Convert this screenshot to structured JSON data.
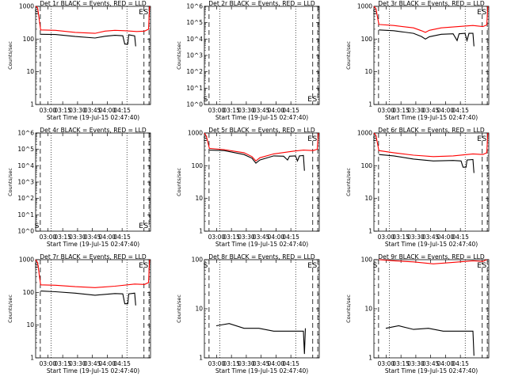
{
  "start_time_label": "Start Time (19-Jul-15 02:47:40)",
  "ylabel": "Counts/sec",
  "time_ticks": [
    "03:00",
    "03:15",
    "03:30",
    "03:45",
    "04:00",
    "04:15"
  ],
  "colors": {
    "events": "#000000",
    "lld": "#ff0000"
  },
  "chart_data": [
    {
      "type": "line",
      "title": "Det 1r BLACK = Events, RED = LLD",
      "xlabel": "Start Time (19-Jul-15 02:47:40)",
      "ylabel": "Counts/sec",
      "scale": "log",
      "ylim": [
        1,
        1000
      ],
      "yticks": [
        "1",
        "10",
        "100",
        "1000"
      ],
      "markers": [
        "S",
        "E",
        "S"
      ],
      "series": [
        {
          "name": "LLD",
          "color": "red",
          "points": [
            [
              0,
              1000
            ],
            [
              2,
              900
            ],
            [
              5,
              190
            ],
            [
              20,
              185
            ],
            [
              40,
              160
            ],
            [
              60,
              150
            ],
            [
              70,
              175
            ],
            [
              80,
              185
            ],
            [
              90,
              180
            ],
            [
              102,
              170
            ],
            [
              110,
              175
            ],
            [
              114,
              200
            ],
            [
              115,
              1000
            ]
          ]
        },
        {
          "name": "Events",
          "color": "black",
          "points": [
            [
              5,
              140
            ],
            [
              20,
              138
            ],
            [
              40,
              120
            ],
            [
              60,
              108
            ],
            [
              70,
              122
            ],
            [
              80,
              130
            ],
            [
              88,
              126
            ],
            [
              90,
              70
            ],
            [
              93,
              70
            ],
            [
              94,
              135
            ],
            [
              100,
              125
            ],
            [
              101,
              60
            ]
          ]
        }
      ]
    },
    {
      "type": "line",
      "title": "Det 2r BLACK = Events, RED = LLD",
      "xlabel": "Start Time (19-Jul-15 02:47:40)",
      "ylabel": "Counts/sec",
      "scale": "log",
      "ylim": [
        1,
        1000000
      ],
      "yticks": [
        "10^0",
        "10^1",
        "10^2",
        "10^3",
        "10^4",
        "10^5",
        "10^6"
      ],
      "markers": [
        "S",
        "E",
        "S"
      ],
      "series": []
    },
    {
      "type": "line",
      "title": "Det 3r BLACK = Events, RED = LLD",
      "xlabel": "Start Time (19-Jul-15 02:47:40)",
      "ylabel": "Counts/sec",
      "scale": "log",
      "ylim": [
        1,
        1000
      ],
      "yticks": [
        "1",
        "10",
        "100",
        "1000"
      ],
      "markers": [
        "S",
        "E",
        "S"
      ],
      "series": [
        {
          "name": "LLD",
          "color": "red",
          "points": [
            [
              0,
              1000
            ],
            [
              2,
              850
            ],
            [
              5,
              280
            ],
            [
              20,
              260
            ],
            [
              40,
              220
            ],
            [
              48,
              180
            ],
            [
              52,
              160
            ],
            [
              56,
              185
            ],
            [
              68,
              220
            ],
            [
              85,
              240
            ],
            [
              100,
              260
            ],
            [
              110,
              240
            ],
            [
              114,
              270
            ],
            [
              115,
              1000
            ]
          ]
        },
        {
          "name": "Events",
          "color": "black",
          "points": [
            [
              5,
              190
            ],
            [
              20,
              180
            ],
            [
              40,
              150
            ],
            [
              48,
              120
            ],
            [
              52,
              100
            ],
            [
              56,
              118
            ],
            [
              68,
              140
            ],
            [
              80,
              145
            ],
            [
              84,
              90
            ],
            [
              86,
              145
            ],
            [
              92,
              150
            ],
            [
              94,
              90
            ],
            [
              96,
              150
            ],
            [
              100,
              150
            ],
            [
              101,
              60
            ]
          ]
        }
      ]
    },
    {
      "type": "line",
      "title": "Det 4r BLACK = Events, RED = LLD",
      "xlabel": "Start Time (19-Jul-15 02:47:40)",
      "ylabel": "Counts/sec",
      "scale": "log",
      "ylim": [
        1,
        1000000
      ],
      "yticks": [
        "10^0",
        "10^1",
        "10^2",
        "10^3",
        "10^4",
        "10^5",
        "10^6"
      ],
      "markers": [
        "S",
        "E",
        "S"
      ],
      "series": []
    },
    {
      "type": "line",
      "title": "Det 5r BLACK = Events, RED = LLD",
      "xlabel": "Start Time (19-Jul-15 02:47:40)",
      "ylabel": "Counts/sec",
      "scale": "log",
      "ylim": [
        1,
        1000
      ],
      "yticks": [
        "1",
        "10",
        "100",
        "1000"
      ],
      "markers": [
        "S",
        "E",
        "S"
      ],
      "series": [
        {
          "name": "LLD",
          "color": "red",
          "points": [
            [
              0,
              1000
            ],
            [
              2,
              800
            ],
            [
              5,
              340
            ],
            [
              20,
              310
            ],
            [
              40,
              250
            ],
            [
              48,
              190
            ],
            [
              52,
              140
            ],
            [
              56,
              175
            ],
            [
              70,
              230
            ],
            [
              90,
              280
            ],
            [
              100,
              300
            ],
            [
              110,
              290
            ],
            [
              114,
              320
            ],
            [
              115,
              1000
            ]
          ]
        },
        {
          "name": "Events",
          "color": "black",
          "points": [
            [
              5,
              300
            ],
            [
              20,
              290
            ],
            [
              40,
              220
            ],
            [
              48,
              170
            ],
            [
              52,
              120
            ],
            [
              56,
              150
            ],
            [
              70,
              200
            ],
            [
              80,
              195
            ],
            [
              84,
              150
            ],
            [
              86,
              195
            ],
            [
              92,
              200
            ],
            [
              94,
              140
            ],
            [
              96,
              200
            ],
            [
              100,
              205
            ],
            [
              101,
              70
            ]
          ]
        }
      ]
    },
    {
      "type": "line",
      "title": "Det 6r BLACK = Events, RED = LLD",
      "xlabel": "Start Time (19-Jul-15 02:47:40)",
      "ylabel": "Counts/sec",
      "scale": "log",
      "ylim": [
        1,
        1000
      ],
      "yticks": [
        "1",
        "10",
        "100",
        "1000"
      ],
      "markers": [
        "S",
        "E",
        "S"
      ],
      "series": [
        {
          "name": "LLD",
          "color": "red",
          "points": [
            [
              0,
              1000
            ],
            [
              2,
              850
            ],
            [
              5,
              290
            ],
            [
              20,
              250
            ],
            [
              40,
              210
            ],
            [
              60,
              190
            ],
            [
              80,
              200
            ],
            [
              100,
              230
            ],
            [
              110,
              220
            ],
            [
              114,
              250
            ],
            [
              115,
              1000
            ]
          ]
        },
        {
          "name": "Events",
          "color": "black",
          "points": [
            [
              5,
              220
            ],
            [
              20,
              200
            ],
            [
              40,
              160
            ],
            [
              60,
              140
            ],
            [
              80,
              145
            ],
            [
              88,
              140
            ],
            [
              90,
              90
            ],
            [
              93,
              90
            ],
            [
              94,
              150
            ],
            [
              100,
              155
            ],
            [
              101,
              60
            ]
          ]
        }
      ]
    },
    {
      "type": "line",
      "title": "Det 7r BLACK = Events, RED = LLD",
      "xlabel": "Start Time (19-Jul-15 02:47:40)",
      "ylabel": "Counts/sec",
      "scale": "log",
      "ylim": [
        1,
        1000
      ],
      "yticks": [
        "1",
        "10",
        "100",
        "1000"
      ],
      "markers": [
        "S",
        "E",
        "S"
      ],
      "series": [
        {
          "name": "LLD",
          "color": "red",
          "points": [
            [
              0,
              1000
            ],
            [
              2,
              800
            ],
            [
              5,
              170
            ],
            [
              20,
              165
            ],
            [
              40,
              150
            ],
            [
              60,
              140
            ],
            [
              80,
              155
            ],
            [
              100,
              180
            ],
            [
              110,
              175
            ],
            [
              114,
              200
            ],
            [
              115,
              1000
            ]
          ]
        },
        {
          "name": "Events",
          "color": "black",
          "points": [
            [
              5,
              110
            ],
            [
              20,
              105
            ],
            [
              40,
              95
            ],
            [
              60,
              82
            ],
            [
              80,
              92
            ],
            [
              88,
              90
            ],
            [
              90,
              45
            ],
            [
              93,
              45
            ],
            [
              94,
              90
            ],
            [
              100,
              95
            ],
            [
              101,
              40
            ]
          ]
        }
      ]
    },
    {
      "type": "line",
      "title": "Det 8r BLACK = Events, RED = LLD",
      "xlabel": "Start Time (19-Jul-15 02:47:40)",
      "ylabel": "Counts/sec",
      "scale": "log",
      "ylim": [
        1,
        100
      ],
      "yticks": [
        "1",
        "10",
        "100"
      ],
      "markers": [
        "S",
        "E",
        "S"
      ],
      "series": [
        {
          "name": "Events",
          "color": "black",
          "points": [
            [
              12,
              4.5
            ],
            [
              25,
              5
            ],
            [
              40,
              4
            ],
            [
              55,
              4
            ],
            [
              70,
              3.5
            ],
            [
              90,
              3.5
            ],
            [
              100,
              3.5
            ],
            [
              101,
              1.2
            ],
            [
              102,
              4
            ]
          ]
        }
      ]
    },
    {
      "type": "line",
      "title": "Det 9r BLACK = Events, RED = LLD",
      "xlabel": "Start Time (19-Jul-15 02:47:40)",
      "ylabel": "Counts/sec",
      "scale": "log",
      "ylim": [
        1,
        100
      ],
      "yticks": [
        "1",
        "10",
        "100"
      ],
      "markers": [
        "S",
        "E",
        "S"
      ],
      "series": [
        {
          "name": "LLD",
          "color": "red",
          "points": [
            [
              5,
              100
            ],
            [
              20,
              95
            ],
            [
              40,
              90
            ],
            [
              60,
              82
            ],
            [
              80,
              88
            ],
            [
              100,
              95
            ],
            [
              110,
              92
            ],
            [
              114,
              100
            ]
          ]
        },
        {
          "name": "Events",
          "color": "black",
          "points": [
            [
              12,
              4
            ],
            [
              25,
              4.5
            ],
            [
              40,
              3.8
            ],
            [
              55,
              4
            ],
            [
              70,
              3.5
            ],
            [
              90,
              3.5
            ],
            [
              100,
              3.5
            ],
            [
              101,
              1.1
            ]
          ]
        }
      ]
    }
  ]
}
